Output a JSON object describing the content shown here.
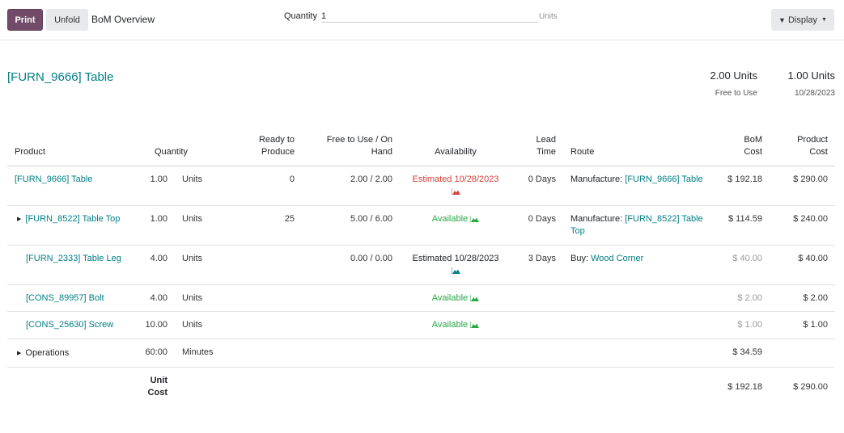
{
  "control_panel": {
    "print_label": "Print",
    "unfold_label": "Unfold",
    "title": "BoM Overview",
    "quantity_label": "Quantity",
    "quantity_value": "1",
    "quantity_unit": "Units",
    "display_label": "Display"
  },
  "header": {
    "product": "[FURN_9666] Table",
    "free_qty": "2.00 Units",
    "free_label": "Free to Use",
    "planned_qty": "1.00 Units",
    "planned_date": "10/28/2023"
  },
  "columns": {
    "product": "Product",
    "quantity": "Quantity",
    "ready_1": "Ready to",
    "ready_2": "Produce",
    "free_1": "Free to Use / On",
    "free_2": "Hand",
    "availability": "Availability",
    "lead_1": "Lead",
    "lead_2": "Time",
    "route": "Route",
    "bom_1": "BoM",
    "bom_2": "Cost",
    "pcost_1": "Product",
    "pcost_2": "Cost"
  },
  "rows": [
    {
      "product": "[FURN_9666] Table",
      "qty": "1.00",
      "uom": "Units",
      "ready": "0",
      "free": "2.00 / 2.00",
      "avail": "Estimated 10/28/2023",
      "lead": "0 Days",
      "route_prefix": "Manufacture:",
      "route_link_1": "[FURN_9666] Table",
      "route_link_2": "",
      "bom_cost": "$ 192.18",
      "prod_cost": "$ 290.00",
      "icon_color": "#d23f3a"
    },
    {
      "product": "[FURN_8522] Table Top",
      "qty": "1.00",
      "uom": "Units",
      "ready": "25",
      "free": "5.00 / 6.00",
      "avail": "Available",
      "lead": "0 Days",
      "route_prefix": "Manufacture:",
      "route_link_1": "[FURN_8522] Table",
      "route_link_2": "Top",
      "bom_cost": "$ 114.59",
      "prod_cost": "$ 240.00",
      "icon_color": "#28a745"
    },
    {
      "product": "[FURN_2333] Table Leg",
      "qty": "4.00",
      "uom": "Units",
      "ready": "",
      "free": "0.00 / 0.00",
      "avail": "Estimated 10/28/2023",
      "lead": "3 Days",
      "route_prefix": "Buy:",
      "route_link_1": "Wood Corner",
      "route_link_2": "",
      "bom_cost": "$ 40.00",
      "prod_cost": "$ 40.00",
      "icon_color": "#017e84"
    },
    {
      "product": "[CONS_89957] Bolt",
      "qty": "4.00",
      "uom": "Units",
      "ready": "",
      "free": "",
      "avail": "Available",
      "lead": "",
      "route_prefix": "",
      "route_link_1": "",
      "route_link_2": "",
      "bom_cost": "$ 2.00",
      "prod_cost": "$ 2.00",
      "icon_color": "#28a745"
    },
    {
      "product": "[CONS_25630] Screw",
      "qty": "10.00",
      "uom": "Units",
      "ready": "",
      "free": "",
      "avail": "Available",
      "lead": "",
      "route_prefix": "",
      "route_link_1": "",
      "route_link_2": "",
      "bom_cost": "$ 1.00",
      "prod_cost": "$ 1.00",
      "icon_color": "#28a745"
    }
  ],
  "operations": {
    "label": "Operations",
    "qty": "60:00",
    "uom": "Minutes",
    "bom_cost": "$ 34.59"
  },
  "footer": {
    "label_1": "Unit",
    "label_2": "Cost",
    "bom_cost": "$ 192.18",
    "prod_cost": "$ 290.00"
  },
  "colors": {
    "primary": "#714b67",
    "link": "#017e84",
    "danger": "#d23f3a",
    "success": "#28a745"
  },
  "icons": {
    "forecast": "area-chart-icon",
    "display": "filter-icon",
    "expand": "caret-right-icon"
  }
}
